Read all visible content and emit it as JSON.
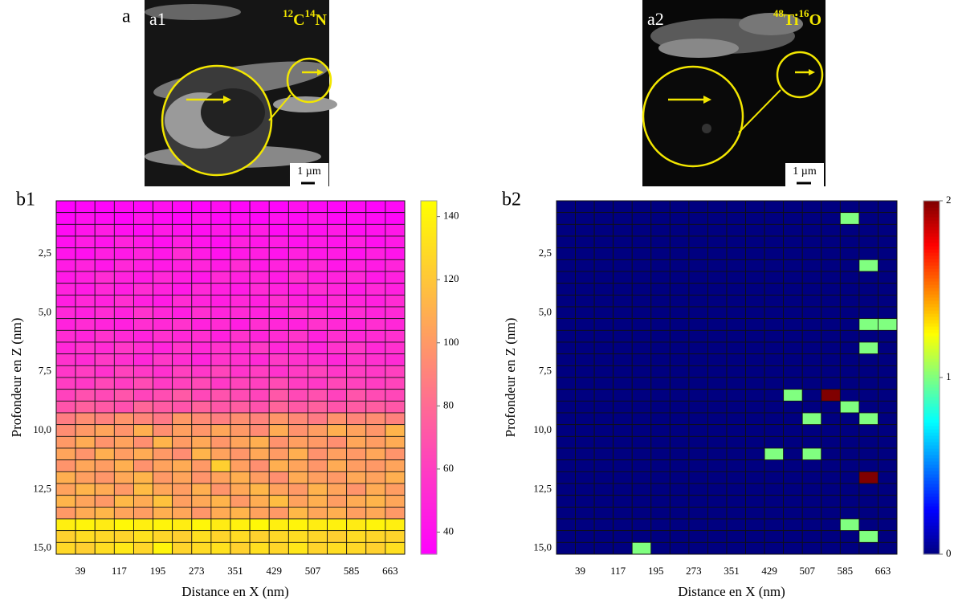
{
  "figure_label": "a",
  "images": [
    {
      "label": "a1",
      "mass1": "12",
      "el1": "C",
      "mass2": "14",
      "el2": "N",
      "scale": "1 µm"
    },
    {
      "label": "a2",
      "mass1": "48",
      "el1": "Ti",
      "mass2": "16",
      "el2": "O",
      "scale": "1 µm"
    }
  ],
  "chart_data": [
    {
      "type": "heatmap",
      "panel_label": "b1",
      "x_label": "Distance en X (nm)",
      "y_label": "Profondeur en Z (nm)",
      "xlim": [
        0,
        702
      ],
      "xticks": [
        39,
        117,
        195,
        273,
        351,
        429,
        507,
        585,
        663
      ],
      "ylim": [
        0.25,
        15.25
      ],
      "yticks": [
        {
          "value": 2.5,
          "label": "2,5"
        },
        {
          "value": 5,
          "label": "5,0"
        },
        {
          "value": 7.5,
          "label": "7,5"
        },
        {
          "value": 10,
          "label": "10,0"
        },
        {
          "value": 12.5,
          "label": "12,5"
        },
        {
          "value": 15,
          "label": "15,0"
        }
      ],
      "colormap": "spring",
      "clim": [
        33,
        145
      ],
      "cticks": [
        40,
        60,
        80,
        100,
        120,
        140
      ],
      "grid": true,
      "z": [
        [
          34,
          36,
          35,
          38,
          36,
          40,
          37,
          35,
          39,
          36,
          38,
          35,
          40,
          37,
          36,
          38,
          35,
          37
        ],
        [
          36,
          40,
          38,
          35,
          42,
          38,
          36,
          41,
          37,
          39,
          36,
          40,
          38,
          42,
          37,
          39,
          38,
          36
        ],
        [
          38,
          42,
          45,
          40,
          38,
          44,
          41,
          39,
          43,
          40,
          45,
          38,
          42,
          40,
          44,
          39,
          41,
          43
        ],
        [
          40,
          45,
          42,
          48,
          44,
          40,
          46,
          42,
          39,
          47,
          43,
          45,
          41,
          44,
          42,
          46,
          40,
          44
        ],
        [
          42,
          40,
          46,
          44,
          48,
          43,
          52,
          45,
          41,
          44,
          46,
          42,
          47,
          43,
          45,
          41,
          46,
          42
        ],
        [
          45,
          48,
          43,
          50,
          46,
          44,
          47,
          49,
          45,
          52,
          44,
          48,
          46,
          50,
          43,
          47,
          45,
          49
        ],
        [
          44,
          47,
          52,
          48,
          45,
          50,
          46,
          43,
          51,
          47,
          49,
          45,
          53,
          46,
          48,
          50,
          44,
          47
        ],
        [
          48,
          45,
          50,
          46,
          52,
          48,
          44,
          50,
          47,
          45,
          51,
          48,
          46,
          52,
          49,
          45,
          50,
          47
        ],
        [
          46,
          50,
          48,
          53,
          47,
          45,
          52,
          49,
          46,
          50,
          47,
          53,
          48,
          45,
          51,
          49,
          47,
          52
        ],
        [
          50,
          47,
          52,
          48,
          55,
          50,
          46,
          53,
          49,
          51,
          48,
          46,
          54,
          50,
          47,
          52,
          49,
          51
        ],
        [
          48,
          52,
          49,
          47,
          53,
          51,
          55,
          48,
          52,
          46,
          53,
          50,
          48,
          55,
          51,
          49,
          53,
          50
        ],
        [
          52,
          49,
          55,
          51,
          48,
          54,
          50,
          53,
          47,
          55,
          49,
          52,
          56,
          48,
          53,
          50,
          52,
          54
        ],
        [
          50,
          55,
          52,
          57,
          53,
          49,
          56,
          51,
          55,
          52,
          58,
          50,
          53,
          49,
          55,
          57,
          51,
          54
        ],
        [
          55,
          52,
          58,
          54,
          50,
          57,
          53,
          49,
          56,
          54,
          51,
          58,
          55,
          53,
          50,
          56,
          54,
          52
        ],
        [
          57,
          60,
          55,
          62,
          58,
          54,
          61,
          57,
          63,
          56,
          60,
          55,
          59,
          62,
          57,
          60,
          58,
          61
        ],
        [
          60,
          58,
          64,
          60,
          66,
          59,
          62,
          65,
          58,
          63,
          61,
          66,
          60,
          58,
          64,
          62,
          60,
          63
        ],
        [
          62,
          68,
          65,
          70,
          63,
          67,
          72,
          64,
          69,
          66,
          63,
          71,
          65,
          68,
          62,
          70,
          66,
          64
        ],
        [
          70,
          75,
          72,
          68,
          78,
          73,
          70,
          76,
          71,
          74,
          69,
          77,
          72,
          75,
          70,
          73,
          74,
          71
        ],
        [
          88,
          95,
          90,
          98,
          92,
          86,
          100,
          94,
          89,
          96,
          91,
          99,
          93,
          87,
          97,
          92,
          95,
          90
        ],
        [
          95,
          100,
          105,
          98,
          110,
          96,
          103,
          99,
          106,
          100,
          94,
          108,
          97,
          102,
          110,
          104,
          99,
          112
        ],
        [
          100,
          108,
          98,
          104,
          96,
          112,
          101,
          107,
          99,
          105,
          110,
          97,
          103,
          100,
          96,
          106,
          102,
          108
        ],
        [
          105,
          98,
          110,
          102,
          108,
          100,
          95,
          112,
          104,
          99,
          107,
          101,
          110,
          97,
          103,
          100,
          106,
          98
        ],
        [
          98,
          106,
          102,
          110,
          97,
          104,
          108,
          100,
          124,
          103,
          96,
          110,
          105,
          99,
          108,
          102,
          100,
          105
        ],
        [
          110,
          103,
          99,
          107,
          112,
          100,
          105,
          98,
          104,
          110,
          102,
          96,
          108,
          103,
          100,
          107,
          104,
          110
        ],
        [
          104,
          112,
          108,
          100,
          115,
          106,
          102,
          110,
          98,
          107,
          113,
          104,
          100,
          111,
          105,
          98,
          108,
          102
        ],
        [
          112,
          105,
          100,
          114,
          108,
          118,
          103,
          107,
          112,
          100,
          109,
          116,
          104,
          110,
          102,
          108,
          112,
          106
        ],
        [
          100,
          108,
          113,
          105,
          102,
          110,
          106,
          99,
          108,
          112,
          104,
          100,
          114,
          106,
          110,
          103,
          107,
          100
        ],
        [
          138,
          140,
          136,
          142,
          138,
          140,
          137,
          141,
          136,
          139,
          142,
          138,
          140,
          137,
          139,
          136,
          140,
          138
        ],
        [
          125,
          130,
          128,
          126,
          132,
          127,
          124,
          131,
          126,
          129,
          125,
          128,
          130,
          127,
          124,
          129,
          127,
          126
        ],
        [
          128,
          124,
          130,
          135,
          127,
          140,
          126,
          129,
          132,
          125,
          131,
          127,
          134,
          126,
          130,
          128,
          125,
          131
        ]
      ]
    },
    {
      "type": "heatmap",
      "panel_label": "b2",
      "x_label": "Distance en X (nm)",
      "y_label": "Profondeur en Z (nm)",
      "xlim": [
        0,
        702
      ],
      "xticks": [
        39,
        117,
        195,
        273,
        351,
        429,
        507,
        585,
        663
      ],
      "ylim": [
        0.25,
        15.25
      ],
      "yticks": [
        {
          "value": 2.5,
          "label": "2,5"
        },
        {
          "value": 5,
          "label": "5,0"
        },
        {
          "value": 7.5,
          "label": "7,5"
        },
        {
          "value": 10,
          "label": "10,0"
        },
        {
          "value": 12.5,
          "label": "12,5"
        },
        {
          "value": 15,
          "label": "15,0"
        }
      ],
      "colormap": "jet",
      "clim": [
        0,
        2
      ],
      "cticks": [
        0,
        1,
        2
      ],
      "grid": true,
      "z": [
        [
          0,
          0,
          0,
          0,
          0,
          0,
          0,
          0,
          0,
          0,
          0,
          0,
          0,
          0,
          0,
          0,
          0,
          0
        ],
        [
          0,
          0,
          0,
          0,
          0,
          0,
          0,
          0,
          0,
          0,
          0,
          0,
          0,
          0,
          0,
          1,
          0,
          0
        ],
        [
          0,
          0,
          0,
          0,
          0,
          0,
          0,
          0,
          0,
          0,
          0,
          0,
          0,
          0,
          0,
          0,
          0,
          0
        ],
        [
          0,
          0,
          0,
          0,
          0,
          0,
          0,
          0,
          0,
          0,
          0,
          0,
          0,
          0,
          0,
          0,
          0,
          0
        ],
        [
          0,
          0,
          0,
          0,
          0,
          0,
          0,
          0,
          0,
          0,
          0,
          0,
          0,
          0,
          0,
          0,
          0,
          0
        ],
        [
          0,
          0,
          0,
          0,
          0,
          0,
          0,
          0,
          0,
          0,
          0,
          0,
          0,
          0,
          0,
          0,
          1,
          0
        ],
        [
          0,
          0,
          0,
          0,
          0,
          0,
          0,
          0,
          0,
          0,
          0,
          0,
          0,
          0,
          0,
          0,
          0,
          0
        ],
        [
          0,
          0,
          0,
          0,
          0,
          0,
          0,
          0,
          0,
          0,
          0,
          0,
          0,
          0,
          0,
          0,
          0,
          0
        ],
        [
          0,
          0,
          0,
          0,
          0,
          0,
          0,
          0,
          0,
          0,
          0,
          0,
          0,
          0,
          0,
          0,
          0,
          0
        ],
        [
          0,
          0,
          0,
          0,
          0,
          0,
          0,
          0,
          0,
          0,
          0,
          0,
          0,
          0,
          0,
          0,
          0,
          0
        ],
        [
          0,
          0,
          0,
          0,
          0,
          0,
          0,
          0,
          0,
          0,
          0,
          0,
          0,
          0,
          0,
          0,
          1,
          1
        ],
        [
          0,
          0,
          0,
          0,
          0,
          0,
          0,
          0,
          0,
          0,
          0,
          0,
          0,
          0,
          0,
          0,
          0,
          0
        ],
        [
          0,
          0,
          0,
          0,
          0,
          0,
          0,
          0,
          0,
          0,
          0,
          0,
          0,
          0,
          0,
          0,
          1,
          0
        ],
        [
          0,
          0,
          0,
          0,
          0,
          0,
          0,
          0,
          0,
          0,
          0,
          0,
          0,
          0,
          0,
          0,
          0,
          0
        ],
        [
          0,
          0,
          0,
          0,
          0,
          0,
          0,
          0,
          0,
          0,
          0,
          0,
          0,
          0,
          0,
          0,
          0,
          0
        ],
        [
          0,
          0,
          0,
          0,
          0,
          0,
          0,
          0,
          0,
          0,
          0,
          0,
          0,
          0,
          0,
          0,
          0,
          0
        ],
        [
          0,
          0,
          0,
          0,
          0,
          0,
          0,
          0,
          0,
          0,
          0,
          0,
          1,
          0,
          2,
          0,
          0,
          0
        ],
        [
          0,
          0,
          0,
          0,
          0,
          0,
          0,
          0,
          0,
          0,
          0,
          0,
          0,
          0,
          0,
          1,
          0,
          0
        ],
        [
          0,
          0,
          0,
          0,
          0,
          0,
          0,
          0,
          0,
          0,
          0,
          0,
          0,
          1,
          0,
          0,
          1,
          0
        ],
        [
          0,
          0,
          0,
          0,
          0,
          0,
          0,
          0,
          0,
          0,
          0,
          0,
          0,
          0,
          0,
          0,
          0,
          0
        ],
        [
          0,
          0,
          0,
          0,
          0,
          0,
          0,
          0,
          0,
          0,
          0,
          0,
          0,
          0,
          0,
          0,
          0,
          0
        ],
        [
          0,
          0,
          0,
          0,
          0,
          0,
          0,
          0,
          0,
          0,
          0,
          1,
          0,
          1,
          0,
          0,
          0,
          0
        ],
        [
          0,
          0,
          0,
          0,
          0,
          0,
          0,
          0,
          0,
          0,
          0,
          0,
          0,
          0,
          0,
          0,
          0,
          0
        ],
        [
          0,
          0,
          0,
          0,
          0,
          0,
          0,
          0,
          0,
          0,
          0,
          0,
          0,
          0,
          0,
          0,
          2,
          0
        ],
        [
          0,
          0,
          0,
          0,
          0,
          0,
          0,
          0,
          0,
          0,
          0,
          0,
          0,
          0,
          0,
          0,
          0,
          0
        ],
        [
          0,
          0,
          0,
          0,
          0,
          0,
          0,
          0,
          0,
          0,
          0,
          0,
          0,
          0,
          0,
          0,
          0,
          0
        ],
        [
          0,
          0,
          0,
          0,
          0,
          0,
          0,
          0,
          0,
          0,
          0,
          0,
          0,
          0,
          0,
          0,
          0,
          0
        ],
        [
          0,
          0,
          0,
          0,
          0,
          0,
          0,
          0,
          0,
          0,
          0,
          0,
          0,
          0,
          0,
          1,
          0,
          0
        ],
        [
          0,
          0,
          0,
          0,
          0,
          0,
          0,
          0,
          0,
          0,
          0,
          0,
          0,
          0,
          0,
          0,
          1,
          0
        ],
        [
          0,
          0,
          0,
          0,
          1,
          0,
          0,
          0,
          0,
          0,
          0,
          0,
          0,
          0,
          0,
          0,
          0,
          0
        ]
      ]
    }
  ]
}
